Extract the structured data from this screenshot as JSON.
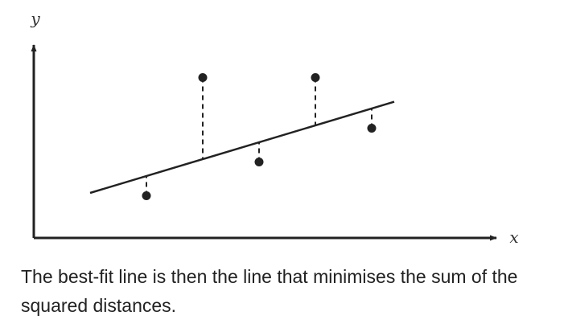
{
  "figure": {
    "axis_labels": {
      "x": "x",
      "y": "y"
    },
    "colors": {
      "ink": "#222222",
      "label": "#333333"
    },
    "chart_data": {
      "type": "scatter",
      "title": "",
      "xlabel": "x",
      "ylabel": "y",
      "ticks": "none",
      "grid": false,
      "legend": "none",
      "points": [
        {
          "x": 2,
          "y": 1.5
        },
        {
          "x": 3,
          "y": 5.7
        },
        {
          "x": 4,
          "y": 2.7
        },
        {
          "x": 5,
          "y": 5.7
        },
        {
          "x": 6,
          "y": 3.9
        }
      ],
      "fit_line": {
        "slope": 0.6,
        "intercept": 1.0,
        "x_range": [
          1,
          6.4
        ]
      },
      "residuals": "dashed-vertical",
      "xlim": [
        0,
        8
      ],
      "ylim": [
        0,
        8
      ]
    }
  },
  "caption": {
    "text": "The best-fit line is then the line that minimises the sum of the squared distances."
  }
}
